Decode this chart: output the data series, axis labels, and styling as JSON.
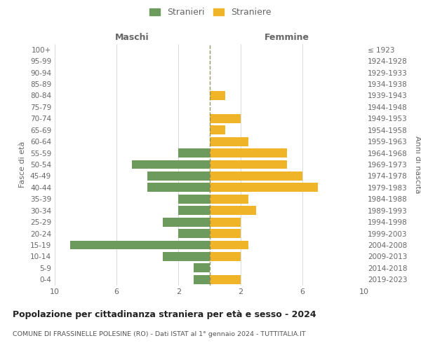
{
  "age_groups": [
    "0-4",
    "5-9",
    "10-14",
    "15-19",
    "20-24",
    "25-29",
    "30-34",
    "35-39",
    "40-44",
    "45-49",
    "50-54",
    "55-59",
    "60-64",
    "65-69",
    "70-74",
    "75-79",
    "80-84",
    "85-89",
    "90-94",
    "95-99",
    "100+"
  ],
  "birth_years": [
    "2019-2023",
    "2014-2018",
    "2009-2013",
    "2004-2008",
    "1999-2003",
    "1994-1998",
    "1989-1993",
    "1984-1988",
    "1979-1983",
    "1974-1978",
    "1969-1973",
    "1964-1968",
    "1959-1963",
    "1954-1958",
    "1949-1953",
    "1944-1948",
    "1939-1943",
    "1934-1938",
    "1929-1933",
    "1924-1928",
    "≤ 1923"
  ],
  "males": [
    1,
    1,
    3,
    9,
    2,
    3,
    2,
    2,
    4,
    4,
    5,
    2,
    0,
    0,
    0,
    0,
    0,
    0,
    0,
    0,
    0
  ],
  "females": [
    2,
    0,
    2,
    2.5,
    2,
    2,
    3,
    2.5,
    7,
    6,
    5,
    5,
    2.5,
    1,
    2,
    0,
    1,
    0,
    0,
    0,
    0
  ],
  "male_color": "#6d9b5e",
  "female_color": "#f0b429",
  "center_line_color": "#888855",
  "title": "Popolazione per cittadinanza straniera per età e sesso - 2024",
  "subtitle": "COMUNE DI FRASSINELLE POLESINE (RO) - Dati ISTAT al 1° gennaio 2024 - TUTTITALIA.IT",
  "xlabel_left": "Maschi",
  "xlabel_right": "Femmine",
  "ylabel_left": "Fasce di età",
  "ylabel_right": "Anni di nascita",
  "legend_male": "Stranieri",
  "legend_female": "Straniere",
  "xlim": 10,
  "background_color": "#ffffff",
  "grid_color": "#cccccc",
  "label_color": "#666666"
}
